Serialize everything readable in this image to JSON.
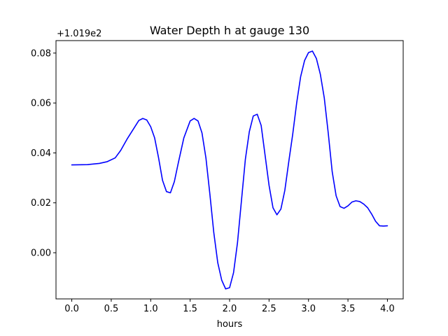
{
  "chart_data": {
    "type": "line",
    "title": "Water Depth h at gauge 130",
    "xlabel": "hours",
    "ylabel": "",
    "y_offset_label": "+1.019e2",
    "xlim": [
      -0.2,
      4.2
    ],
    "ylim": [
      -0.0185,
      0.085
    ],
    "x_ticks": [
      0.0,
      0.5,
      1.0,
      1.5,
      2.0,
      2.5,
      3.0,
      3.5,
      4.0
    ],
    "x_tick_labels": [
      "0.0",
      "0.5",
      "1.0",
      "1.5",
      "2.0",
      "2.5",
      "3.0",
      "3.5",
      "4.0"
    ],
    "y_ticks": [
      0.0,
      0.02,
      0.04,
      0.06,
      0.08
    ],
    "y_tick_labels": [
      "0.00",
      "0.02",
      "0.04",
      "0.06",
      "0.08"
    ],
    "grid": false,
    "series": [
      {
        "color": "#0000ff",
        "x": [
          0.0,
          0.2,
          0.35,
          0.45,
          0.55,
          0.62,
          0.7,
          0.78,
          0.85,
          0.9,
          0.95,
          1.0,
          1.05,
          1.1,
          1.15,
          1.2,
          1.25,
          1.3,
          1.35,
          1.42,
          1.5,
          1.55,
          1.6,
          1.65,
          1.7,
          1.75,
          1.8,
          1.85,
          1.9,
          1.95,
          2.0,
          2.05,
          2.1,
          2.15,
          2.2,
          2.25,
          2.3,
          2.35,
          2.4,
          2.45,
          2.5,
          2.55,
          2.6,
          2.65,
          2.7,
          2.75,
          2.8,
          2.85,
          2.9,
          2.95,
          3.0,
          3.05,
          3.1,
          3.15,
          3.2,
          3.25,
          3.3,
          3.35,
          3.4,
          3.45,
          3.5,
          3.55,
          3.6,
          3.65,
          3.7,
          3.75,
          3.8,
          3.85,
          3.9,
          3.95,
          4.0
        ],
        "values": [
          0.0352,
          0.0353,
          0.0358,
          0.0365,
          0.038,
          0.041,
          0.0455,
          0.0495,
          0.053,
          0.0538,
          0.0532,
          0.0505,
          0.046,
          0.038,
          0.029,
          0.0245,
          0.024,
          0.0285,
          0.036,
          0.046,
          0.0528,
          0.0538,
          0.0528,
          0.048,
          0.038,
          0.0235,
          0.008,
          -0.004,
          -0.011,
          -0.0145,
          -0.014,
          -0.008,
          0.004,
          0.0208,
          0.0375,
          0.0485,
          0.0548,
          0.0555,
          0.051,
          0.039,
          0.027,
          0.018,
          0.0152,
          0.0175,
          0.025,
          0.0365,
          0.0475,
          0.06,
          0.0705,
          0.077,
          0.0802,
          0.0808,
          0.0778,
          0.0715,
          0.062,
          0.048,
          0.0325,
          0.0228,
          0.0185,
          0.0178,
          0.0188,
          0.0203,
          0.0208,
          0.0205,
          0.0195,
          0.018,
          0.0155,
          0.0126,
          0.0108,
          0.0107,
          0.0108
        ]
      }
    ]
  }
}
